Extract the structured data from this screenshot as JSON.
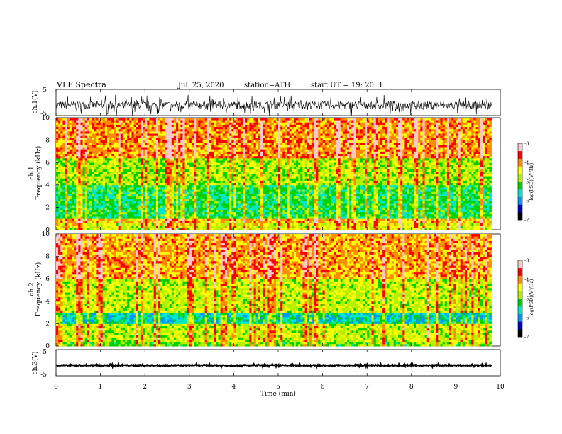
{
  "header": {
    "title": "VLF  Spectra",
    "date": "Jul.  25,  2020",
    "station": "station=ATH",
    "start": "start  UT  =    19: 20: 1"
  },
  "colors": {
    "spectrogram_scale": [
      "#000000",
      "#0000c8",
      "#0096ff",
      "#00e6c8",
      "#00d200",
      "#b4f000",
      "#ffff00",
      "#ff8c00",
      "#ff0000",
      "#ffc8c8"
    ],
    "waveform": "#000000"
  },
  "chart_data": [
    {
      "type": "line",
      "panel": "ch1-waveform",
      "ylabel": "ch.1(V)",
      "ylim": [
        -5,
        5
      ],
      "yticks": [
        "5",
        "-5"
      ],
      "xlim": [
        0,
        10
      ],
      "series": [
        {
          "baseline": -1.0,
          "noise_amplitude": 2.5
        }
      ]
    },
    {
      "type": "heatmap",
      "panel": "ch1-spectrogram",
      "ylabel_line1": "ch.1",
      "ylabel_line2": "Frequency  (kHz)",
      "ylim": [
        0,
        10
      ],
      "yticks": [
        "0",
        "2",
        "4",
        "6",
        "8",
        "10"
      ],
      "xlim": [
        0,
        10
      ],
      "data_end_min": 9.8,
      "bands_khz": [
        {
          "from": 0,
          "to": 0.6,
          "log_psd": -4.6
        },
        {
          "from": 0.6,
          "to": 1.0,
          "log_psd": -4.2
        },
        {
          "from": 1.0,
          "to": 4.0,
          "log_psd": -5.3
        },
        {
          "from": 4.0,
          "to": 6.5,
          "log_psd": -4.8
        },
        {
          "from": 6.5,
          "to": 10,
          "log_psd": -4.0
        }
      ],
      "colorbar": {
        "label": "log(PSD)(V²/Hz)",
        "range": [
          -7,
          -3
        ],
        "ticks": [
          "-3",
          "-4",
          "-5",
          "-6",
          "-7"
        ]
      }
    },
    {
      "type": "heatmap",
      "panel": "ch2-spectrogram",
      "ylabel_line1": "ch.2",
      "ylabel_line2": "Frequency  (kHz)",
      "ylim": [
        0,
        10
      ],
      "yticks": [
        "0",
        "2",
        "4",
        "6",
        "8",
        "10"
      ],
      "xlim": [
        0,
        10
      ],
      "data_end_min": 9.8,
      "bands_khz": [
        {
          "from": 0,
          "to": 0.5,
          "log_psd": -5.0
        },
        {
          "from": 0.5,
          "to": 2.0,
          "log_psd": -4.7
        },
        {
          "from": 2.0,
          "to": 3.0,
          "log_psd": -5.6
        },
        {
          "from": 3.0,
          "to": 6.0,
          "log_psd": -4.7
        },
        {
          "from": 6.0,
          "to": 10,
          "log_psd": -4.1
        }
      ],
      "colorbar": {
        "label": "log(PSD)(V²/Hz)",
        "range": [
          -7,
          -3
        ],
        "ticks": [
          "-3",
          "-4",
          "-5",
          "-6",
          "-7"
        ]
      }
    },
    {
      "type": "line",
      "panel": "ch3-waveform",
      "ylabel": "ch.3(V)",
      "ylim": [
        -5,
        5
      ],
      "yticks": [
        "5",
        "-5"
      ],
      "xlim": [
        0,
        10
      ],
      "xlabel": "Time  (min)",
      "xticks": [
        "0",
        "1",
        "2",
        "3",
        "4",
        "5",
        "6",
        "7",
        "8",
        "9",
        "10"
      ],
      "series": [
        {
          "baseline": -1.0,
          "noise_amplitude": 0.3
        }
      ]
    }
  ]
}
